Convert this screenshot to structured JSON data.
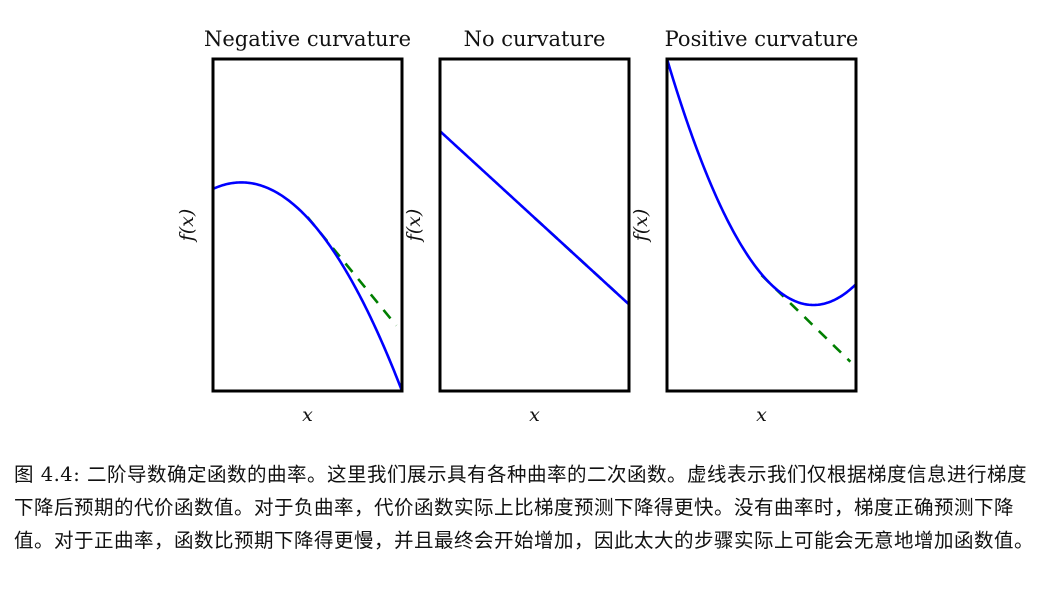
{
  "chart_data": [
    {
      "type": "line",
      "title": "Negative curvature",
      "xlabel": "x",
      "ylabel": "f(x)",
      "f": {
        "a": -1.0,
        "b": 0.3,
        "c": 0.55
      },
      "tangent_x0": 0.55,
      "ylim": [
        -0.15,
        1.0
      ],
      "xlim": [
        0,
        1
      ]
    },
    {
      "type": "line",
      "title": "No curvature",
      "xlabel": "x",
      "ylabel": "f(x)",
      "f": {
        "a": 0.0,
        "b": -0.6,
        "c": 0.75
      },
      "tangent_x0": 0.55,
      "ylim": [
        -0.15,
        1.0
      ],
      "xlim": [
        0,
        1
      ]
    },
    {
      "type": "line",
      "title": "Positive curvature",
      "xlabel": "x",
      "ylabel": "f(x)",
      "f": {
        "a": 1.42,
        "b": -2.2,
        "c": 1.0
      },
      "tangent_x0": 0.55,
      "ylim": [
        -0.15,
        1.0
      ],
      "xlim": [
        0,
        1
      ]
    }
  ],
  "colors": {
    "curve": "#0000ff",
    "tangent": "#007f00",
    "frame": "#000000"
  },
  "caption": "图 4.4: 二阶导数确定函数的曲率。这里我们展示具有各种曲率的二次函数。虚线表示我们仅根据梯度信息进行梯度下降后预期的代价函数值。对于负曲率，代价函数实际上比梯度预测下降得更快。没有曲率时，梯度正确预测下降值。对于正曲率，函数比预期下降得更慢，并且最终会开始增加，因此太大的步骤实际上可能会无意地增加函数值。"
}
